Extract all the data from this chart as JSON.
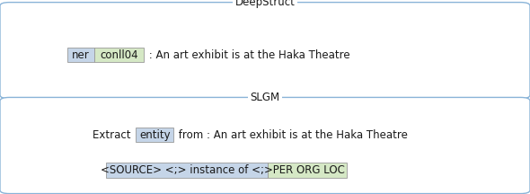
{
  "fig_width": 5.9,
  "fig_height": 2.16,
  "dpi": 100,
  "box1_title": "DeepStruct",
  "box1_ner_text": "ner",
  "box1_conll_text": "conll04",
  "box1_suffix": " : An art exhibit is at the Haka Theatre",
  "box1_ner_bg": "#c5d5e8",
  "box1_conll_bg": "#d5e8c5",
  "box2_title": "SLGM",
  "box2_prefix": "Extract ",
  "box2_entity_text": "entity",
  "box2_suffix": " from : An art exhibit is at the Haka Theatre",
  "box2_entity_bg": "#c5d5e8",
  "box2_line2_left": "<SOURCE> <;> instance of <;>",
  "box2_line2_right": " PER ORG LOC",
  "box2_left_bg": "#c5d5e8",
  "box2_right_bg": "#d5e8c5",
  "border_color": "#8ab4d8",
  "border_lw": 1.0,
  "text_color": "#1a1a1a",
  "font_size": 8.5,
  "title_font_size": 8.5
}
